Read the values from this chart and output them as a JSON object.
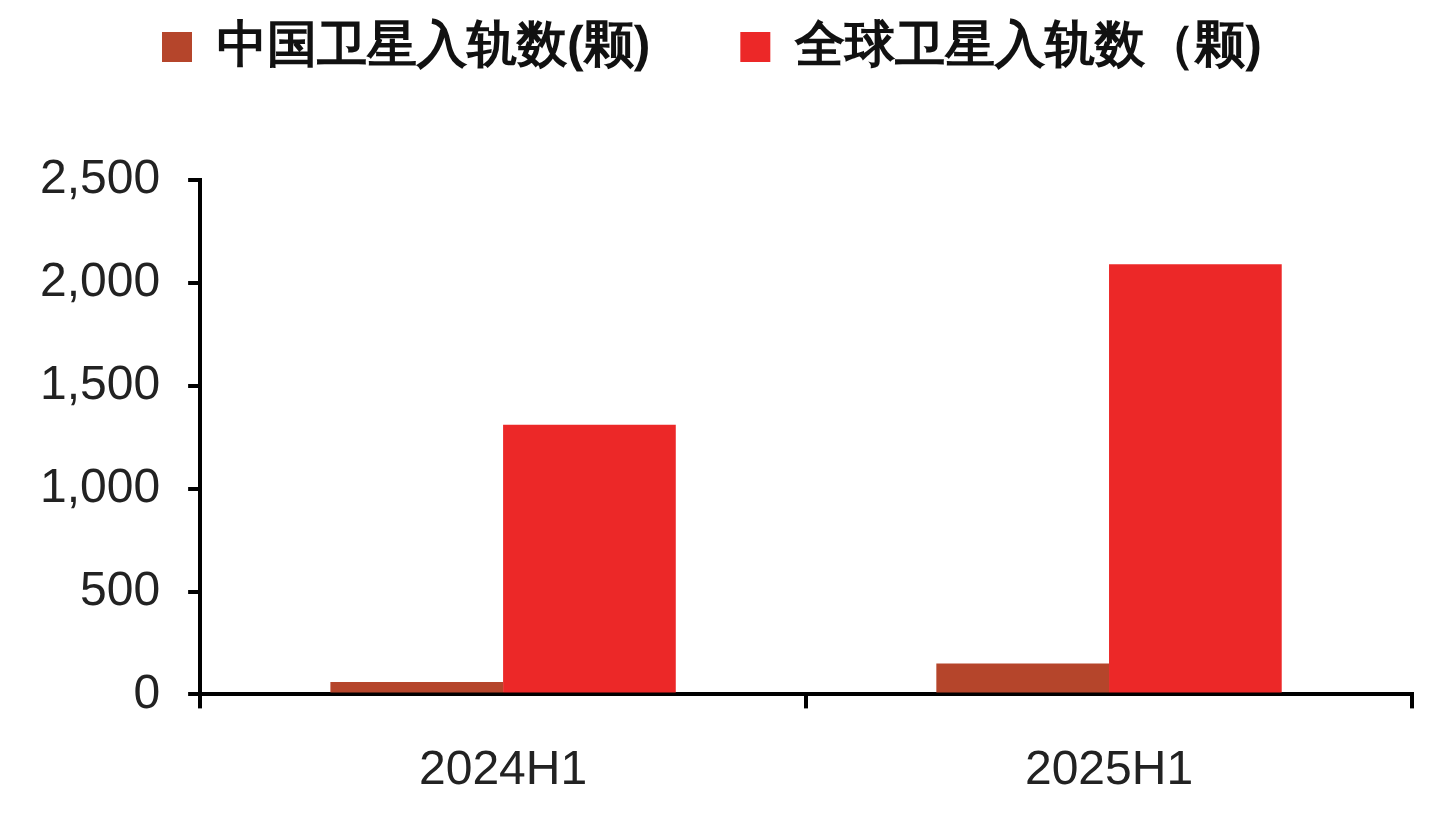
{
  "chart_data": {
    "type": "bar",
    "categories": [
      "2024H1",
      "2025H1"
    ],
    "series": [
      {
        "name": "中国卫星入轨数(颗)",
        "color": "#b5452b",
        "values": [
          60,
          150
        ]
      },
      {
        "name": "全球卫星入轨数（颗)",
        "color": "#ec2828",
        "values": [
          1310,
          2090
        ]
      }
    ],
    "ylim": [
      0,
      2500
    ],
    "yticks": [
      0,
      500,
      {
        "value": 1000,
        "label": "1,000"
      },
      {
        "value": 1500,
        "label": "1,500"
      },
      {
        "value": 2000,
        "label": "2,000"
      },
      {
        "value": 2500,
        "label": "2,500"
      }
    ],
    "grid": false,
    "legend": "top"
  }
}
